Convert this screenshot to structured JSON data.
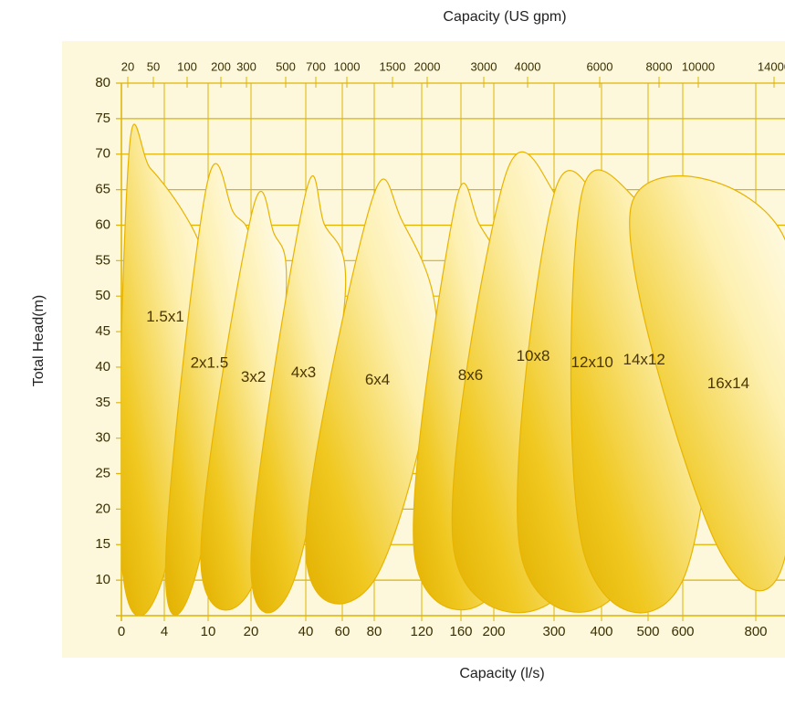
{
  "chart_data": {
    "type": "region",
    "title": "Capacity (US gpm)",
    "x_label": "Capacity (l/s)",
    "y_label": "Total Head(m)",
    "xlim": [
      0,
      880
    ],
    "xticks": [
      0,
      4,
      10,
      20,
      40,
      60,
      80,
      120,
      160,
      200,
      300,
      400,
      500,
      600,
      800
    ],
    "top_xticks": [
      20,
      50,
      100,
      200,
      300,
      500,
      700,
      1000,
      1500,
      2000,
      3000,
      4000,
      6000,
      8000,
      10000,
      14000
    ],
    "ylim": [
      5,
      80
    ],
    "yticks": [
      10,
      15,
      20,
      25,
      30,
      35,
      40,
      45,
      50,
      55,
      60,
      65,
      70,
      75,
      80
    ],
    "grid": true,
    "color": "#e8b400",
    "pumps": [
      {
        "name": "1.5x1",
        "points": [
          [
            0.7,
            70
          ],
          [
            2.7,
            68
          ],
          [
            6.5,
            62
          ],
          [
            9.3,
            56
          ],
          [
            10,
            50
          ],
          [
            3.8,
            10
          ],
          [
            0,
            13
          ]
        ]
      },
      {
        "name": "2x1.5",
        "points": [
          [
            9.7,
            65
          ],
          [
            15.7,
            62
          ],
          [
            19.4,
            52.5
          ],
          [
            8.1,
            10
          ],
          [
            4.2,
            13
          ]
        ]
      },
      {
        "name": "3x2",
        "points": [
          [
            20,
            61.2
          ],
          [
            28.3,
            58.9
          ],
          [
            32.7,
            49.2
          ],
          [
            21.7,
            10.4
          ],
          [
            9,
            13
          ]
        ]
      },
      {
        "name": "4x3",
        "points": [
          [
            39.3,
            63.4
          ],
          [
            50,
            60.2
          ],
          [
            61.5,
            49.2
          ],
          [
            35.7,
            10
          ],
          [
            20,
            13
          ]
        ]
      },
      {
        "name": "6x4",
        "points": [
          [
            77,
            62.4
          ],
          [
            102.9,
            60.8
          ],
          [
            135,
            42.8
          ],
          [
            80,
            10
          ],
          [
            40,
            14.5
          ]
        ]
      },
      {
        "name": "8x6",
        "points": [
          [
            153,
            62.1
          ],
          [
            182,
            60.2
          ],
          [
            219,
            48
          ],
          [
            210,
            10
          ],
          [
            114,
            13.5
          ]
        ]
      },
      {
        "name": "10x8",
        "points": [
          [
            217,
            66.4
          ],
          [
            306,
            64
          ],
          [
            357,
            53.1
          ],
          [
            332,
            10
          ],
          [
            153,
            14
          ]
        ]
      },
      {
        "name": "12x10",
        "points": [
          [
            300,
            64.4
          ],
          [
            422,
            60.8
          ],
          [
            506,
            53.8
          ],
          [
            449,
            10
          ],
          [
            244,
            14
          ]
        ]
      },
      {
        "name": "14x12",
        "points": [
          [
            358,
            64.3
          ],
          [
            518,
            61.5
          ],
          [
            698,
            55
          ],
          [
            600,
            10
          ],
          [
            362,
            14
          ]
        ]
      },
      {
        "name": "16x14",
        "points": [
          [
            464,
            62.8
          ],
          [
            880,
            58
          ],
          [
            880,
            13.2
          ],
          [
            680,
            16.4
          ]
        ]
      }
    ]
  }
}
